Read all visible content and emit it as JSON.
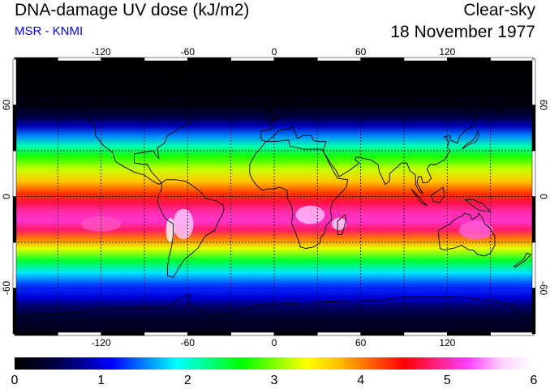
{
  "header": {
    "title": "DNA-damage UV dose (kJ/m2)",
    "subtitle": "MSR - KNMI",
    "condition": "Clear-sky",
    "date": "18 November 1977"
  },
  "colors": {
    "subtitle": "#0000ff",
    "scale": [
      "#000000",
      "#000030",
      "#00008c",
      "#0000ff",
      "#0080ff",
      "#00ffff",
      "#00ff80",
      "#00ff00",
      "#80ff00",
      "#ffff00",
      "#ffc000",
      "#ff6000",
      "#ff0000",
      "#ff2080",
      "#ff40ff",
      "#ffd0ff",
      "#ffffff"
    ]
  },
  "map": {
    "lon_ticks": [
      "-120",
      "-60",
      "0",
      "60",
      "120"
    ],
    "lat_ticks": [
      "60",
      "0",
      "-60"
    ]
  },
  "colorbar": {
    "labels": [
      "0",
      "1",
      "2",
      "3",
      "4",
      "5",
      "6"
    ],
    "min": 0,
    "max": 6
  },
  "chart_data": {
    "type": "heatmap",
    "x_range": [
      -180,
      180
    ],
    "y_range": [
      -90,
      90
    ],
    "zlim": [
      0,
      6
    ],
    "z_label": "DNA-damage UV dose (kJ/m2)"
  }
}
